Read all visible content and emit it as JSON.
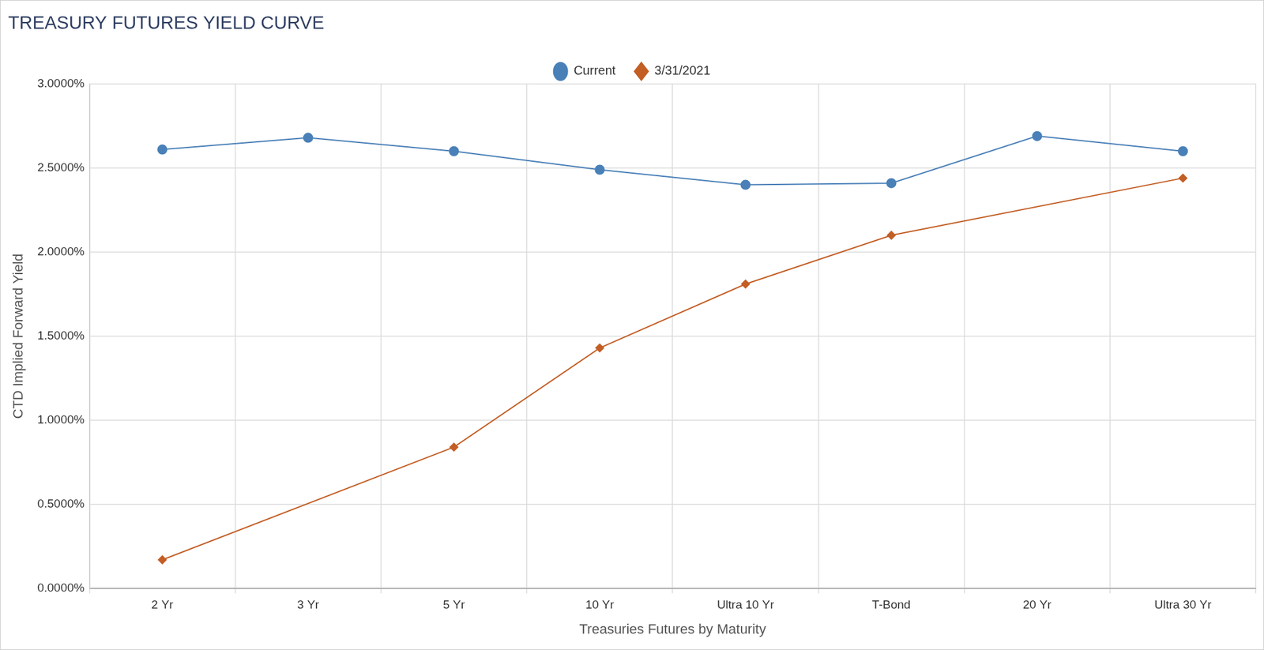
{
  "chart_data": {
    "type": "line",
    "title": "TREASURY FUTURES YIELD CURVE",
    "x_label": "Treasuries Futures by Maturity",
    "y_label": "CTD Implied Forward Yield",
    "categories": [
      "2 Yr",
      "3 Yr",
      "5 Yr",
      "10 Yr",
      "Ultra 10 Yr",
      "T-Bond",
      "20 Yr",
      "Ultra 30 Yr"
    ],
    "series": [
      {
        "name": "Current",
        "color": "#4a80b8",
        "marker": "circle",
        "values": [
          2.61,
          2.68,
          2.6,
          2.49,
          2.4,
          2.41,
          2.69,
          2.6
        ]
      },
      {
        "name": "3/31/2021",
        "color": "#c35e25",
        "marker": "diamond",
        "values": [
          0.17,
          null,
          0.84,
          1.43,
          1.81,
          2.1,
          null,
          2.44
        ]
      }
    ],
    "ylim": [
      0,
      3
    ],
    "yticks": [
      {
        "value": 0,
        "label": "0.0000%"
      },
      {
        "value": 0.5,
        "label": "0.5000%"
      },
      {
        "value": 1,
        "label": "1.0000%"
      },
      {
        "value": 1.5,
        "label": "1.5000%"
      },
      {
        "value": 2,
        "label": "2.0000%"
      },
      {
        "value": 2.5,
        "label": "2.5000%"
      },
      {
        "value": 3,
        "label": "3.0000%"
      }
    ],
    "grid": true,
    "legend": "top"
  }
}
